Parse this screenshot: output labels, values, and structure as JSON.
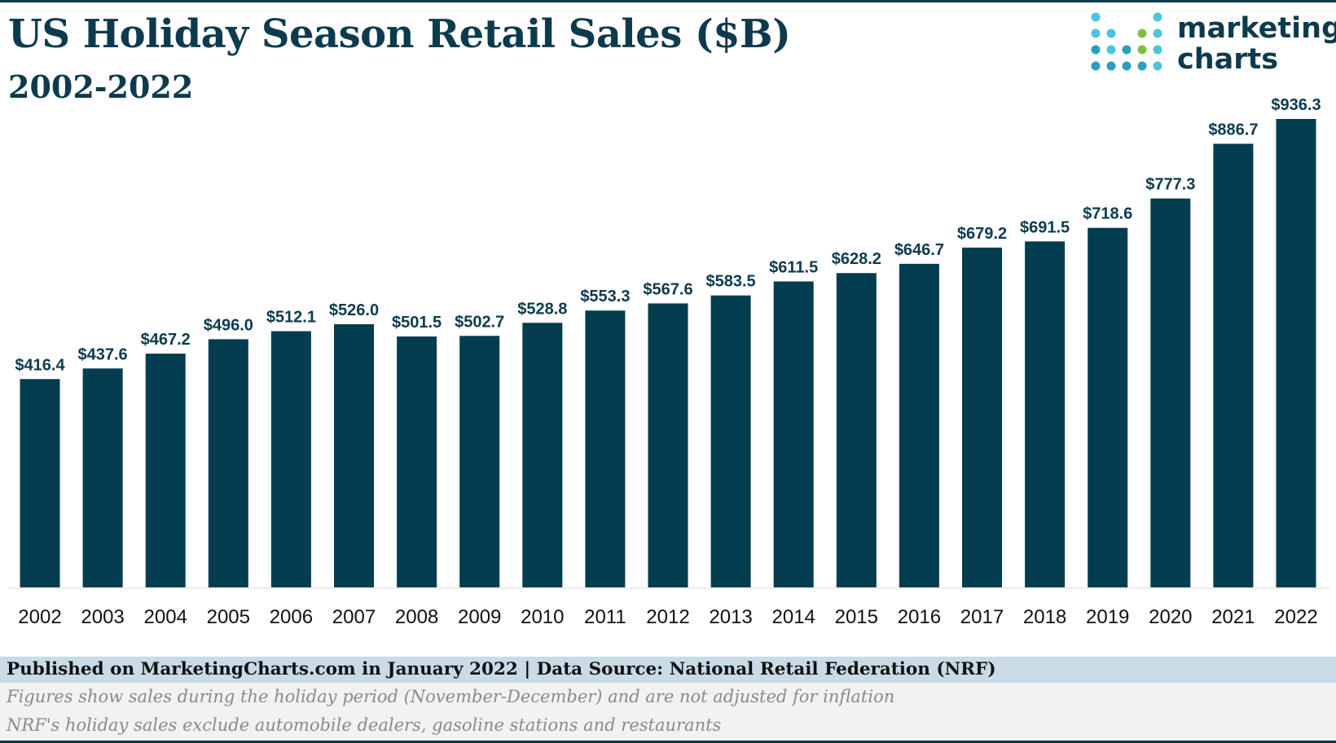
{
  "header": {
    "title": "US Holiday Season Retail Sales ($B)",
    "subtitle": "2002-2022"
  },
  "logo": {
    "line1": "marketing",
    "line2": "charts",
    "dot_colors": [
      "#4fc3d9",
      "#2a9fc0",
      "#7dc142"
    ]
  },
  "colors": {
    "bar": "#033d4f",
    "text": "#0d3b4d"
  },
  "chart_data": {
    "type": "bar",
    "title": "US Holiday Season Retail Sales ($B)",
    "subtitle": "2002-2022",
    "categories": [
      "2002",
      "2003",
      "2004",
      "2005",
      "2006",
      "2007",
      "2008",
      "2009",
      "2010",
      "2011",
      "2012",
      "2013",
      "2014",
      "2015",
      "2016",
      "2017",
      "2018",
      "2019",
      "2020",
      "2021",
      "2022"
    ],
    "values": [
      416.4,
      437.6,
      467.2,
      496.0,
      512.1,
      526.0,
      501.5,
      502.7,
      528.8,
      553.3,
      567.6,
      583.5,
      611.5,
      628.2,
      646.7,
      679.2,
      691.5,
      718.6,
      777.3,
      886.7,
      936.3
    ],
    "value_labels": [
      "$416.4",
      "$437.6",
      "$467.2",
      "$496.0",
      "$512.1",
      "$526.0",
      "$501.5",
      "$502.7",
      "$528.8",
      "$553.3",
      "$567.6",
      "$583.5",
      "$611.5",
      "$628.2",
      "$646.7",
      "$679.2",
      "$691.5",
      "$718.6",
      "$777.3",
      "$886.7",
      "$936.3"
    ],
    "xlabel": "",
    "ylabel": "",
    "ylim": [
      0,
      936.3
    ],
    "grid": false,
    "legend": "none"
  },
  "footer": {
    "source": "Published on MarketingCharts.com in January 2022 | Data Source: National Retail Federation (NRF)",
    "note1": "Figures show sales during the holiday period (November-December) and are not adjusted for inflation",
    "note2": "NRF's holiday sales exclude automobile dealers, gasoline stations and restaurants"
  }
}
